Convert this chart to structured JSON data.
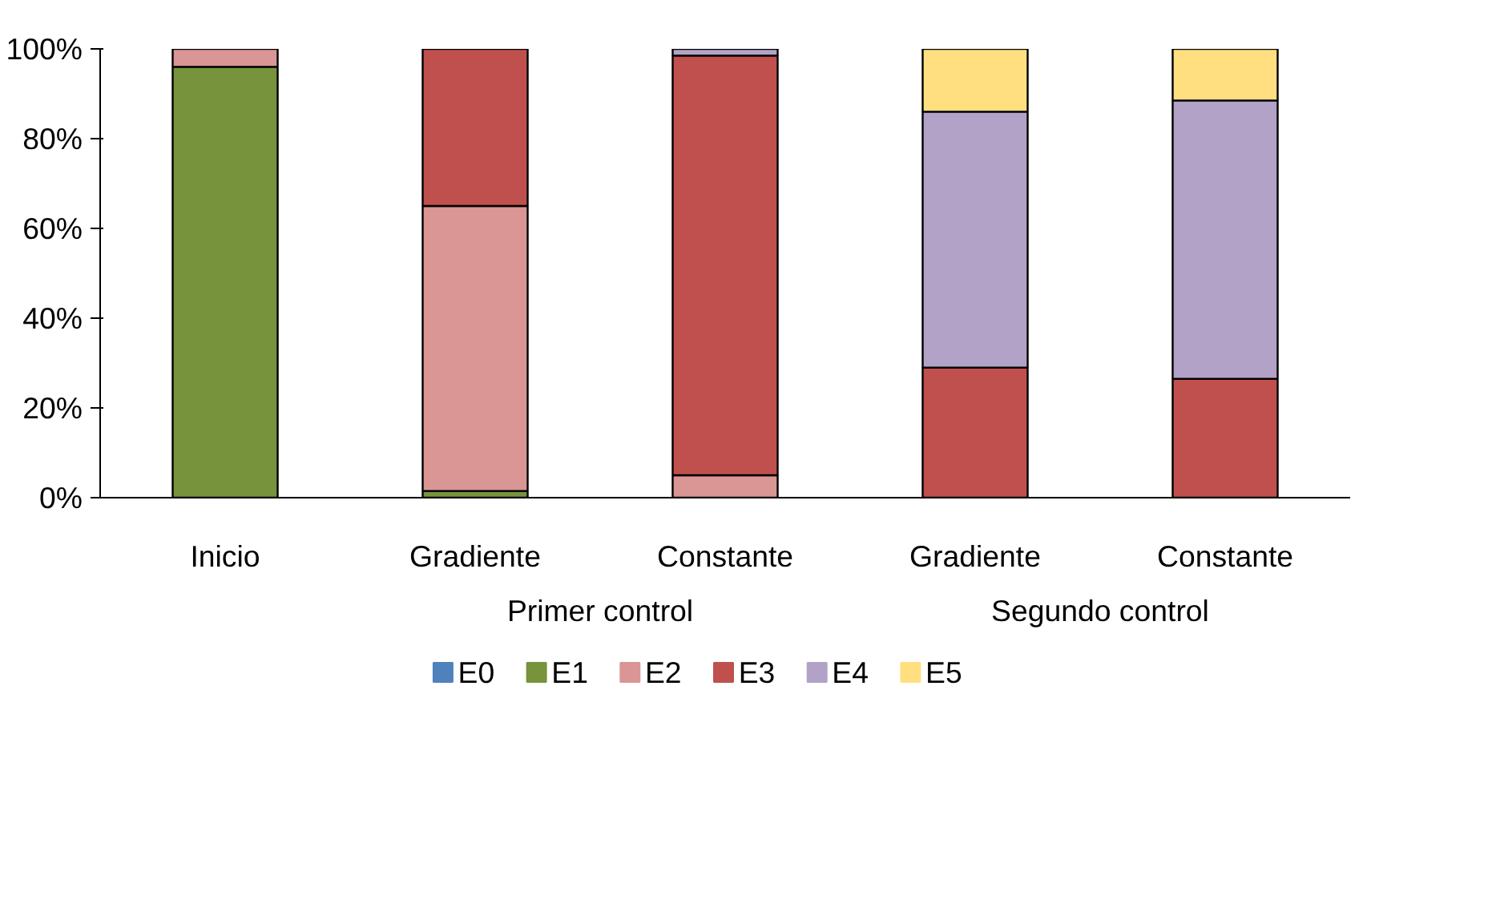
{
  "chart_data": {
    "type": "bar",
    "stacked": true,
    "categories": [
      "Inicio",
      "Gradiente",
      "Constante",
      "Gradiente",
      "Constante"
    ],
    "series": [
      {
        "name": "E0",
        "color": "#4f81bd",
        "values": [
          0,
          0,
          0,
          0,
          0
        ]
      },
      {
        "name": "E1",
        "color": "#77933c",
        "values": [
          96,
          1.5,
          0,
          0,
          0
        ]
      },
      {
        "name": "E2",
        "color": "#d99694",
        "values": [
          4,
          63.5,
          5,
          0,
          0
        ]
      },
      {
        "name": "E3",
        "color": "#c0504d",
        "values": [
          0,
          35,
          93.5,
          29,
          26.5
        ]
      },
      {
        "name": "E4",
        "color": "#b3a2c7",
        "values": [
          0,
          0,
          1.5,
          57,
          62
        ]
      },
      {
        "name": "E5",
        "color": "#ffdf80",
        "values": [
          0,
          0,
          0,
          14,
          11.5
        ]
      }
    ],
    "annotations": [
      "Primer control",
      "Segundo control"
    ],
    "ylim": [
      0,
      100
    ],
    "yticks": [
      {
        "value": 0,
        "label": "0%"
      },
      {
        "value": 20,
        "label": "20%"
      },
      {
        "value": 40,
        "label": "40%"
      },
      {
        "value": 60,
        "label": "60%"
      },
      {
        "value": 80,
        "label": "80%"
      },
      {
        "value": 100,
        "label": "100%"
      }
    ],
    "grid": false,
    "legend": "bottom"
  }
}
